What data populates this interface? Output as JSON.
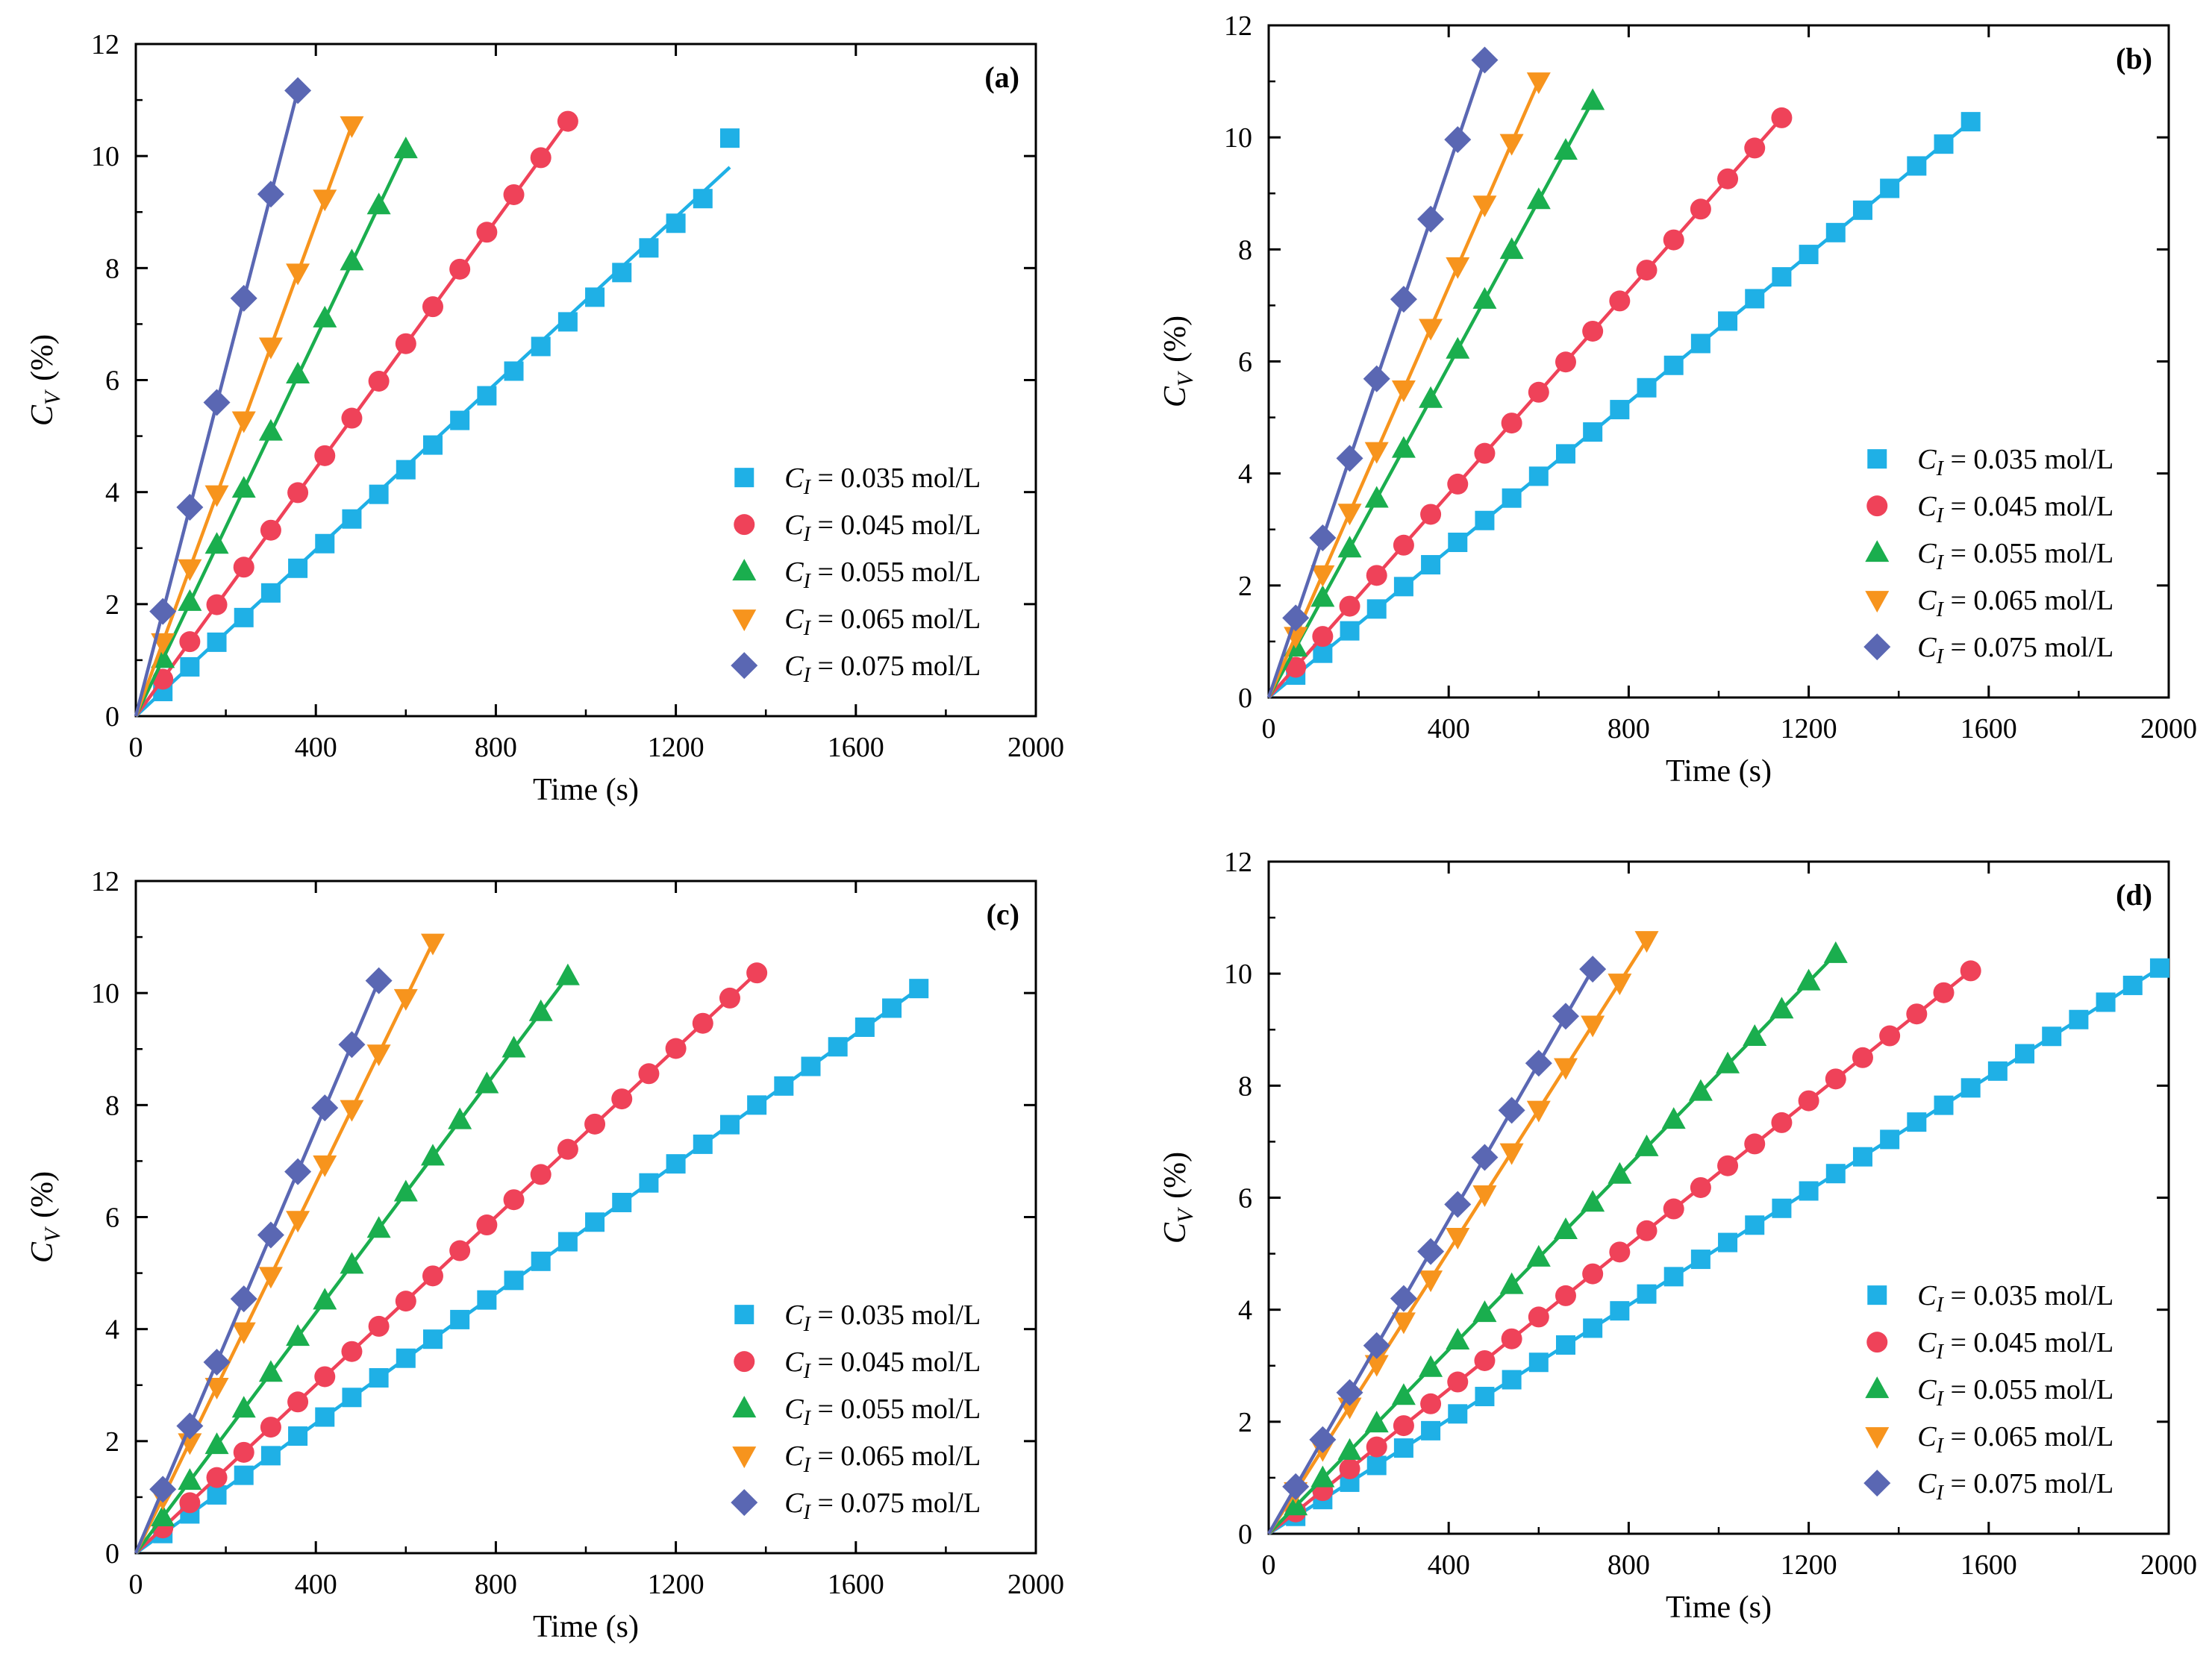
{
  "colors": {
    "s035": "#1fb0e6",
    "s045": "#ef4259",
    "s055": "#1aae4e",
    "s065": "#f7941d",
    "s075": "#5a67b3",
    "axis": "#000000"
  },
  "chart_data": [
    {
      "type": "line",
      "label": "(a)",
      "xlabel": "Time (s)",
      "ylabel_symbol": "C",
      "ylabel_sub": "V",
      "ylabel_unit": "(%)",
      "xlim": [
        0,
        2000
      ],
      "ylim": [
        0,
        12
      ],
      "xticks": [
        "0",
        "400",
        "800",
        "1200",
        "1600",
        "2000"
      ],
      "yticks": [
        "0",
        "2",
        "4",
        "6",
        "8",
        "10",
        "12"
      ],
      "legend_position": "bottom-right",
      "series": [
        {
          "name": "C_I = 0.035 mol/L",
          "legend_symbol": "C",
          "legend_sub": "I",
          "legend_text": " = 0.035 mol/L",
          "marker": "square",
          "color_key": "s035",
          "dt": 60,
          "fit_end": [
            1320,
            9.8
          ],
          "y": [
            0,
            0.44,
            0.88,
            1.32,
            1.76,
            2.2,
            2.64,
            3.08,
            3.52,
            3.96,
            4.4,
            4.84,
            5.28,
            5.72,
            6.16,
            6.6,
            7.04,
            7.48,
            7.92,
            8.36,
            8.8,
            9.24,
            10.32
          ]
        },
        {
          "name": "C_I = 0.045 mol/L",
          "legend_symbol": "C",
          "legend_sub": "I",
          "legend_text": " = 0.045 mol/L",
          "marker": "circle",
          "color_key": "s045",
          "dt": 60,
          "fit_end": [
            960,
            10.62
          ],
          "y": [
            0,
            0.66,
            1.33,
            1.99,
            2.66,
            3.32,
            3.99,
            4.65,
            5.32,
            5.98,
            6.65,
            7.31,
            7.98,
            8.64,
            9.31,
            9.97,
            10.62
          ]
        },
        {
          "name": "C_I = 0.055 mol/L",
          "legend_symbol": "C",
          "legend_sub": "I",
          "legend_text": " = 0.055 mol/L",
          "marker": "triangle-up",
          "color_key": "s055",
          "dt": 60,
          "fit_end": [
            600,
            10.12
          ],
          "y": [
            0,
            1.02,
            2.04,
            3.06,
            4.06,
            5.08,
            6.1,
            7.1,
            8.12,
            9.12,
            10.12
          ]
        },
        {
          "name": "C_I = 0.065 mol/L",
          "legend_symbol": "C",
          "legend_sub": "I",
          "legend_text": " = 0.065 mol/L",
          "marker": "triangle-down",
          "color_key": "s065",
          "dt": 60,
          "fit_end": [
            480,
            10.55
          ],
          "y": [
            0,
            1.32,
            2.64,
            3.96,
            5.28,
            6.6,
            7.92,
            9.24,
            10.55
          ]
        },
        {
          "name": "C_I = 0.075 mol/L",
          "legend_symbol": "C",
          "legend_sub": "I",
          "legend_text": " = 0.075 mol/L",
          "marker": "diamond",
          "color_key": "s075",
          "dt": 60,
          "fit_end": [
            360,
            11.17
          ],
          "y": [
            0,
            1.87,
            3.73,
            5.6,
            7.46,
            9.32,
            11.17
          ]
        }
      ]
    },
    {
      "type": "line",
      "label": "(b)",
      "xlabel": "Time (s)",
      "ylabel_symbol": "C",
      "ylabel_sub": "V",
      "ylabel_unit": "(%)",
      "xlim": [
        0,
        2000
      ],
      "ylim": [
        0,
        12
      ],
      "xticks": [
        "0",
        "400",
        "800",
        "1200",
        "1600",
        "2000"
      ],
      "yticks": [
        "0",
        "2",
        "4",
        "6",
        "8",
        "10",
        "12"
      ],
      "legend_position": "bottom-right",
      "series": [
        {
          "name": "C_I = 0.035 mol/L",
          "legend_symbol": "C",
          "legend_sub": "I",
          "legend_text": " = 0.035 mol/L",
          "marker": "square",
          "color_key": "s035",
          "dt": 60,
          "fit_end": [
            1560,
            10.28
          ],
          "y": [
            0,
            0.4,
            0.79,
            1.19,
            1.58,
            1.98,
            2.37,
            2.77,
            3.16,
            3.56,
            3.95,
            4.35,
            4.74,
            5.14,
            5.53,
            5.93,
            6.32,
            6.72,
            7.12,
            7.51,
            7.91,
            8.3,
            8.7,
            9.09,
            9.49,
            9.88,
            10.28
          ]
        },
        {
          "name": "C_I = 0.045 mol/L",
          "legend_symbol": "C",
          "legend_sub": "I",
          "legend_text": " = 0.045 mol/L",
          "marker": "circle",
          "color_key": "s045",
          "dt": 60,
          "fit_end": [
            1140,
            10.35
          ],
          "y": [
            0,
            0.54,
            1.09,
            1.63,
            2.18,
            2.72,
            3.27,
            3.81,
            4.36,
            4.9,
            5.45,
            5.99,
            6.54,
            7.08,
            7.63,
            8.17,
            8.72,
            9.26,
            9.81,
            10.35
          ]
        },
        {
          "name": "C_I = 0.055 mol/L",
          "legend_symbol": "C",
          "legend_sub": "I",
          "legend_text": " = 0.055 mol/L",
          "marker": "triangle-up",
          "color_key": "s055",
          "dt": 60,
          "fit_end": [
            720,
            10.65
          ],
          "y": [
            0,
            0.89,
            1.78,
            2.66,
            3.55,
            4.44,
            5.33,
            6.21,
            7.1,
            7.99,
            8.88,
            9.76,
            10.65
          ]
        },
        {
          "name": "C_I = 0.065 mol/L",
          "legend_symbol": "C",
          "legend_sub": "I",
          "legend_text": " = 0.065 mol/L",
          "marker": "triangle-down",
          "color_key": "s065",
          "dt": 60,
          "fit_end": [
            600,
            11.0
          ],
          "y": [
            0,
            1.1,
            2.2,
            3.3,
            4.4,
            5.5,
            6.6,
            7.7,
            8.8,
            9.9,
            11.0
          ]
        },
        {
          "name": "C_I = 0.075 mol/L",
          "legend_symbol": "C",
          "legend_sub": "I",
          "legend_text": " = 0.075 mol/L",
          "marker": "diamond",
          "color_key": "s075",
          "dt": 60,
          "fit_end": [
            480,
            11.38
          ],
          "y": [
            0,
            1.42,
            2.85,
            4.27,
            5.69,
            7.11,
            8.54,
            9.96,
            11.38
          ]
        }
      ]
    },
    {
      "type": "line",
      "label": "(c)",
      "xlabel": "Time (s)",
      "ylabel_symbol": "C",
      "ylabel_sub": "V",
      "ylabel_unit": "(%)",
      "xlim": [
        0,
        2000
      ],
      "ylim": [
        0,
        12
      ],
      "xticks": [
        "0",
        "400",
        "800",
        "1200",
        "1600",
        "2000"
      ],
      "yticks": [
        "0",
        "2",
        "4",
        "6",
        "8",
        "10",
        "12"
      ],
      "legend_position": "bottom-right",
      "series": [
        {
          "name": "C_I = 0.035 mol/L",
          "legend_symbol": "C",
          "legend_sub": "I",
          "legend_text": " = 0.035 mol/L",
          "marker": "square",
          "color_key": "s035",
          "dt": 60,
          "fit_end": [
            1740,
            10.08
          ],
          "y": [
            0,
            0.35,
            0.7,
            1.04,
            1.39,
            1.74,
            2.09,
            2.43,
            2.78,
            3.13,
            3.48,
            3.82,
            4.17,
            4.52,
            4.87,
            5.21,
            5.56,
            5.91,
            6.26,
            6.61,
            6.95,
            7.3,
            7.65,
            8.0,
            8.34,
            8.69,
            9.04,
            9.39,
            9.73,
            10.08
          ]
        },
        {
          "name": "C_I = 0.045 mol/L",
          "legend_symbol": "C",
          "legend_sub": "I",
          "legend_text": " = 0.045 mol/L",
          "marker": "circle",
          "color_key": "s045",
          "dt": 60,
          "fit_end": [
            1380,
            10.36
          ],
          "y": [
            0,
            0.45,
            0.9,
            1.35,
            1.8,
            2.25,
            2.7,
            3.15,
            3.6,
            4.05,
            4.5,
            4.95,
            5.4,
            5.86,
            6.31,
            6.76,
            7.21,
            7.66,
            8.11,
            8.56,
            9.01,
            9.46,
            9.91,
            10.36
          ]
        },
        {
          "name": "C_I = 0.055 mol/L",
          "legend_symbol": "C",
          "legend_sub": "I",
          "legend_text": " = 0.055 mol/L",
          "marker": "triangle-up",
          "color_key": "s055",
          "dt": 60,
          "fit_end": [
            960,
            10.3
          ],
          "y": [
            0,
            0.64,
            1.29,
            1.93,
            2.58,
            3.22,
            3.86,
            4.51,
            5.15,
            5.79,
            6.44,
            7.08,
            7.73,
            8.37,
            9.01,
            9.66,
            10.3
          ]
        },
        {
          "name": "C_I = 0.065 mol/L",
          "legend_symbol": "C",
          "legend_sub": "I",
          "legend_text": " = 0.065 mol/L",
          "marker": "triangle-down",
          "color_key": "s065",
          "dt": 60,
          "fit_end": [
            660,
            10.9
          ],
          "y": [
            0,
            0.99,
            1.98,
            2.97,
            3.96,
            4.95,
            5.95,
            6.94,
            7.93,
            8.92,
            9.91,
            10.9
          ]
        },
        {
          "name": "C_I = 0.075 mol/L",
          "legend_symbol": "C",
          "legend_sub": "I",
          "legend_text": " = 0.075 mol/L",
          "marker": "diamond",
          "color_key": "s075",
          "dt": 60,
          "fit_end": [
            540,
            10.22
          ],
          "y": [
            0,
            1.14,
            2.27,
            3.41,
            4.54,
            5.68,
            6.81,
            7.95,
            9.08,
            10.22
          ]
        }
      ]
    },
    {
      "type": "line",
      "label": "(d)",
      "xlabel": "Time (s)",
      "ylabel_symbol": "C",
      "ylabel_sub": "V",
      "ylabel_unit": "(%)",
      "xlim": [
        0,
        2000
      ],
      "ylim": [
        0,
        12
      ],
      "xticks": [
        "0",
        "400",
        "800",
        "1200",
        "1600",
        "2000"
      ],
      "yticks": [
        "0",
        "2",
        "4",
        "6",
        "8",
        "10",
        "12"
      ],
      "legend_position": "bottom-right",
      "series": [
        {
          "name": "C_I = 0.035 mol/L",
          "legend_symbol": "C",
          "legend_sub": "I",
          "legend_text": " = 0.035 mol/L",
          "marker": "square",
          "color_key": "s035",
          "dt": 60,
          "fit_end": [
            1980,
            10.1
          ],
          "y": [
            0,
            0.31,
            0.61,
            0.92,
            1.22,
            1.53,
            1.84,
            2.14,
            2.45,
            2.75,
            3.06,
            3.37,
            3.67,
            3.98,
            4.28,
            4.59,
            4.9,
            5.2,
            5.51,
            5.81,
            6.12,
            6.43,
            6.73,
            7.04,
            7.35,
            7.65,
            7.96,
            8.26,
            8.57,
            8.88,
            9.18,
            9.49,
            9.79,
            10.1
          ]
        },
        {
          "name": "C_I = 0.045 mol/L",
          "legend_symbol": "C",
          "legend_sub": "I",
          "legend_text": " = 0.045 mol/L",
          "marker": "circle",
          "color_key": "s045",
          "dt": 60,
          "fit_end": [
            1560,
            10.05
          ],
          "y": [
            0,
            0.39,
            0.77,
            1.16,
            1.55,
            1.93,
            2.32,
            2.71,
            3.09,
            3.48,
            3.87,
            4.25,
            4.64,
            5.03,
            5.41,
            5.8,
            6.18,
            6.57,
            6.96,
            7.34,
            7.73,
            8.12,
            8.5,
            8.89,
            9.28,
            9.66,
            10.05
          ]
        },
        {
          "name": "C_I = 0.055 mol/L",
          "legend_symbol": "C",
          "legend_sub": "I",
          "legend_text": " = 0.055 mol/L",
          "marker": "triangle-up",
          "color_key": "s055",
          "dt": 60,
          "fit_end": [
            1260,
            10.35
          ],
          "y": [
            0,
            0.49,
            0.99,
            1.48,
            1.97,
            2.46,
            2.96,
            3.45,
            3.94,
            4.44,
            4.93,
            5.42,
            5.91,
            6.41,
            6.9,
            7.39,
            7.89,
            8.38,
            8.87,
            9.36,
            9.86,
            10.35
          ]
        },
        {
          "name": "C_I = 0.065 mol/L",
          "legend_symbol": "C",
          "legend_sub": "I",
          "legend_text": " = 0.065 mol/L",
          "marker": "triangle-down",
          "color_key": "s065",
          "dt": 60,
          "fit_end": [
            840,
            10.6
          ],
          "y": [
            0,
            0.76,
            1.51,
            2.27,
            3.03,
            3.79,
            4.54,
            5.3,
            6.06,
            6.81,
            7.57,
            8.33,
            9.09,
            9.84,
            10.6
          ]
        },
        {
          "name": "C_I = 0.075 mol/L",
          "legend_symbol": "C",
          "legend_sub": "I",
          "legend_text": " = 0.075 mol/L",
          "marker": "diamond",
          "color_key": "s075",
          "dt": 60,
          "fit_end": [
            720,
            10.08
          ],
          "y": [
            0,
            0.84,
            1.68,
            2.52,
            3.36,
            4.2,
            5.04,
            5.88,
            6.72,
            7.56,
            8.4,
            9.24,
            10.08
          ]
        }
      ]
    }
  ]
}
